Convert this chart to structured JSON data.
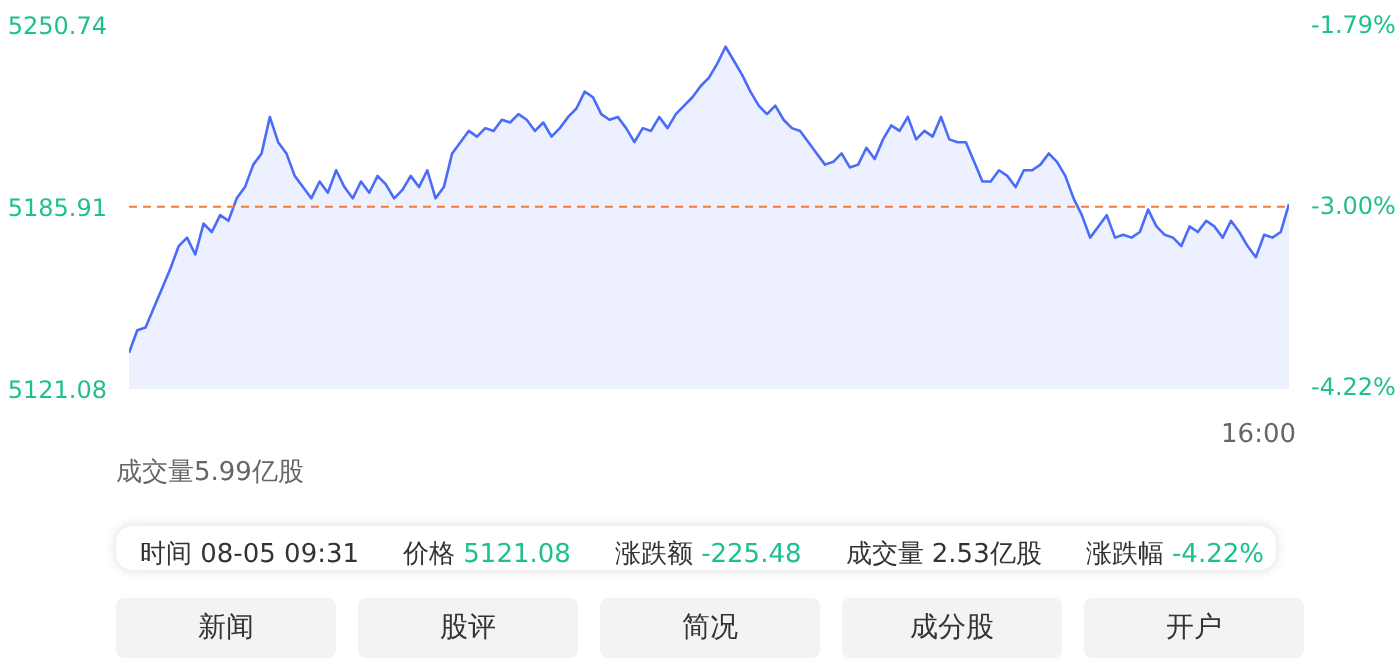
{
  "chart_data": {
    "type": "area",
    "categories": [
      null,
      null,
      null,
      null,
      null,
      null,
      null,
      null,
      null,
      null,
      null,
      null,
      null,
      null,
      null,
      null,
      null,
      null,
      null,
      null,
      null,
      null,
      null,
      null,
      null,
      null,
      null,
      null,
      null,
      null,
      null,
      null,
      null,
      null,
      null,
      null,
      null,
      null,
      null,
      null,
      null,
      null,
      null,
      null,
      null,
      null,
      null,
      null,
      null,
      null,
      null,
      null,
      null,
      null,
      null,
      null,
      null,
      null,
      null,
      null,
      null,
      null,
      null,
      null,
      null,
      null,
      null,
      null,
      null,
      null,
      null,
      null,
      null,
      null,
      null,
      null,
      null,
      null,
      null,
      null,
      null,
      null,
      null,
      null,
      null,
      null,
      null,
      null,
      null,
      null,
      null,
      null,
      null,
      null,
      null,
      null,
      null,
      null,
      null,
      null,
      null,
      null,
      null,
      null,
      null,
      null,
      null,
      null,
      null,
      null,
      null,
      null,
      null,
      null,
      null,
      null,
      null,
      null,
      null,
      null,
      null,
      null,
      null,
      null,
      null,
      null,
      null,
      null,
      null,
      null,
      null,
      null,
      null,
      null,
      null,
      null,
      null,
      null,
      null,
      null,
      null
    ],
    "series": [
      {
        "color": "#4a6cf7",
        "values": [
          5134,
          5142,
          5143,
          5150,
          5157,
          5164,
          5172,
          5175,
          5169,
          5180,
          5177,
          5183,
          5181,
          5189,
          5193,
          5201,
          5205,
          5218,
          5209,
          5205,
          5197,
          5193,
          5189,
          5195,
          5191,
          5199,
          5193,
          5189,
          5195,
          5191,
          5197,
          5194,
          5189,
          5192,
          5197,
          5193,
          5199,
          5189,
          5193,
          5205,
          5209,
          5213,
          5211,
          5214,
          5213,
          5217,
          5216,
          5219,
          5217,
          5213,
          5216,
          5211,
          5214,
          5218,
          5221,
          5227,
          5225,
          5219,
          5217,
          5218,
          5214,
          5209,
          5214,
          5213,
          5218,
          5214,
          5219,
          5222,
          5225,
          5229,
          5232,
          5237,
          5243,
          5238,
          5233,
          5227,
          5222,
          5219,
          5222,
          5217,
          5214,
          5213,
          5209,
          5205,
          5201,
          5202,
          5205,
          5200,
          5201,
          5207,
          5203,
          5210,
          5215,
          5213,
          5218,
          5210,
          5213,
          5211,
          5218,
          5210,
          5209,
          5209,
          5202,
          5195,
          5195,
          5199,
          5197,
          5193,
          5199,
          5199,
          5201,
          5205,
          5202,
          5197,
          5189,
          5183,
          5175,
          5179,
          5183,
          5175,
          5176,
          5175,
          5177,
          5185,
          5179,
          5176,
          5175,
          5172,
          5179,
          5177,
          5181,
          5179,
          5175,
          5181,
          5177,
          5172,
          5168,
          5176,
          5175,
          5177,
          5187
        ]
      }
    ],
    "ylim": [
      5121.08,
      5250.74
    ],
    "yticks": [
      {
        "value": 5121.08,
        "label": "5121.08"
      },
      {
        "value": 5185.91,
        "label": "5185.91"
      },
      {
        "value": 5250.74,
        "label": "5250.74"
      }
    ],
    "y2lim": [
      -4.22,
      -1.79
    ],
    "y2ticks": [
      {
        "value": -4.22,
        "label": "-4.22%"
      },
      {
        "value": -3.0,
        "label": "-3.00%"
      },
      {
        "value": -1.79,
        "label": "-1.79%"
      }
    ],
    "ref_lines": [
      {
        "axis": "y",
        "value": 5186,
        "color": "#f47a3c",
        "line_style": "dashed"
      }
    ],
    "annotations": [
      "成交量5.99亿股",
      "16:00",
      "时间",
      "08-05 09:31",
      "价格",
      "5121.08",
      "涨跌额",
      "-225.48",
      "成交量",
      "2.53亿股",
      "涨跌幅",
      "-4.22%",
      "新闻",
      "股评",
      "简况",
      "成分股",
      "开户"
    ]
  }
}
